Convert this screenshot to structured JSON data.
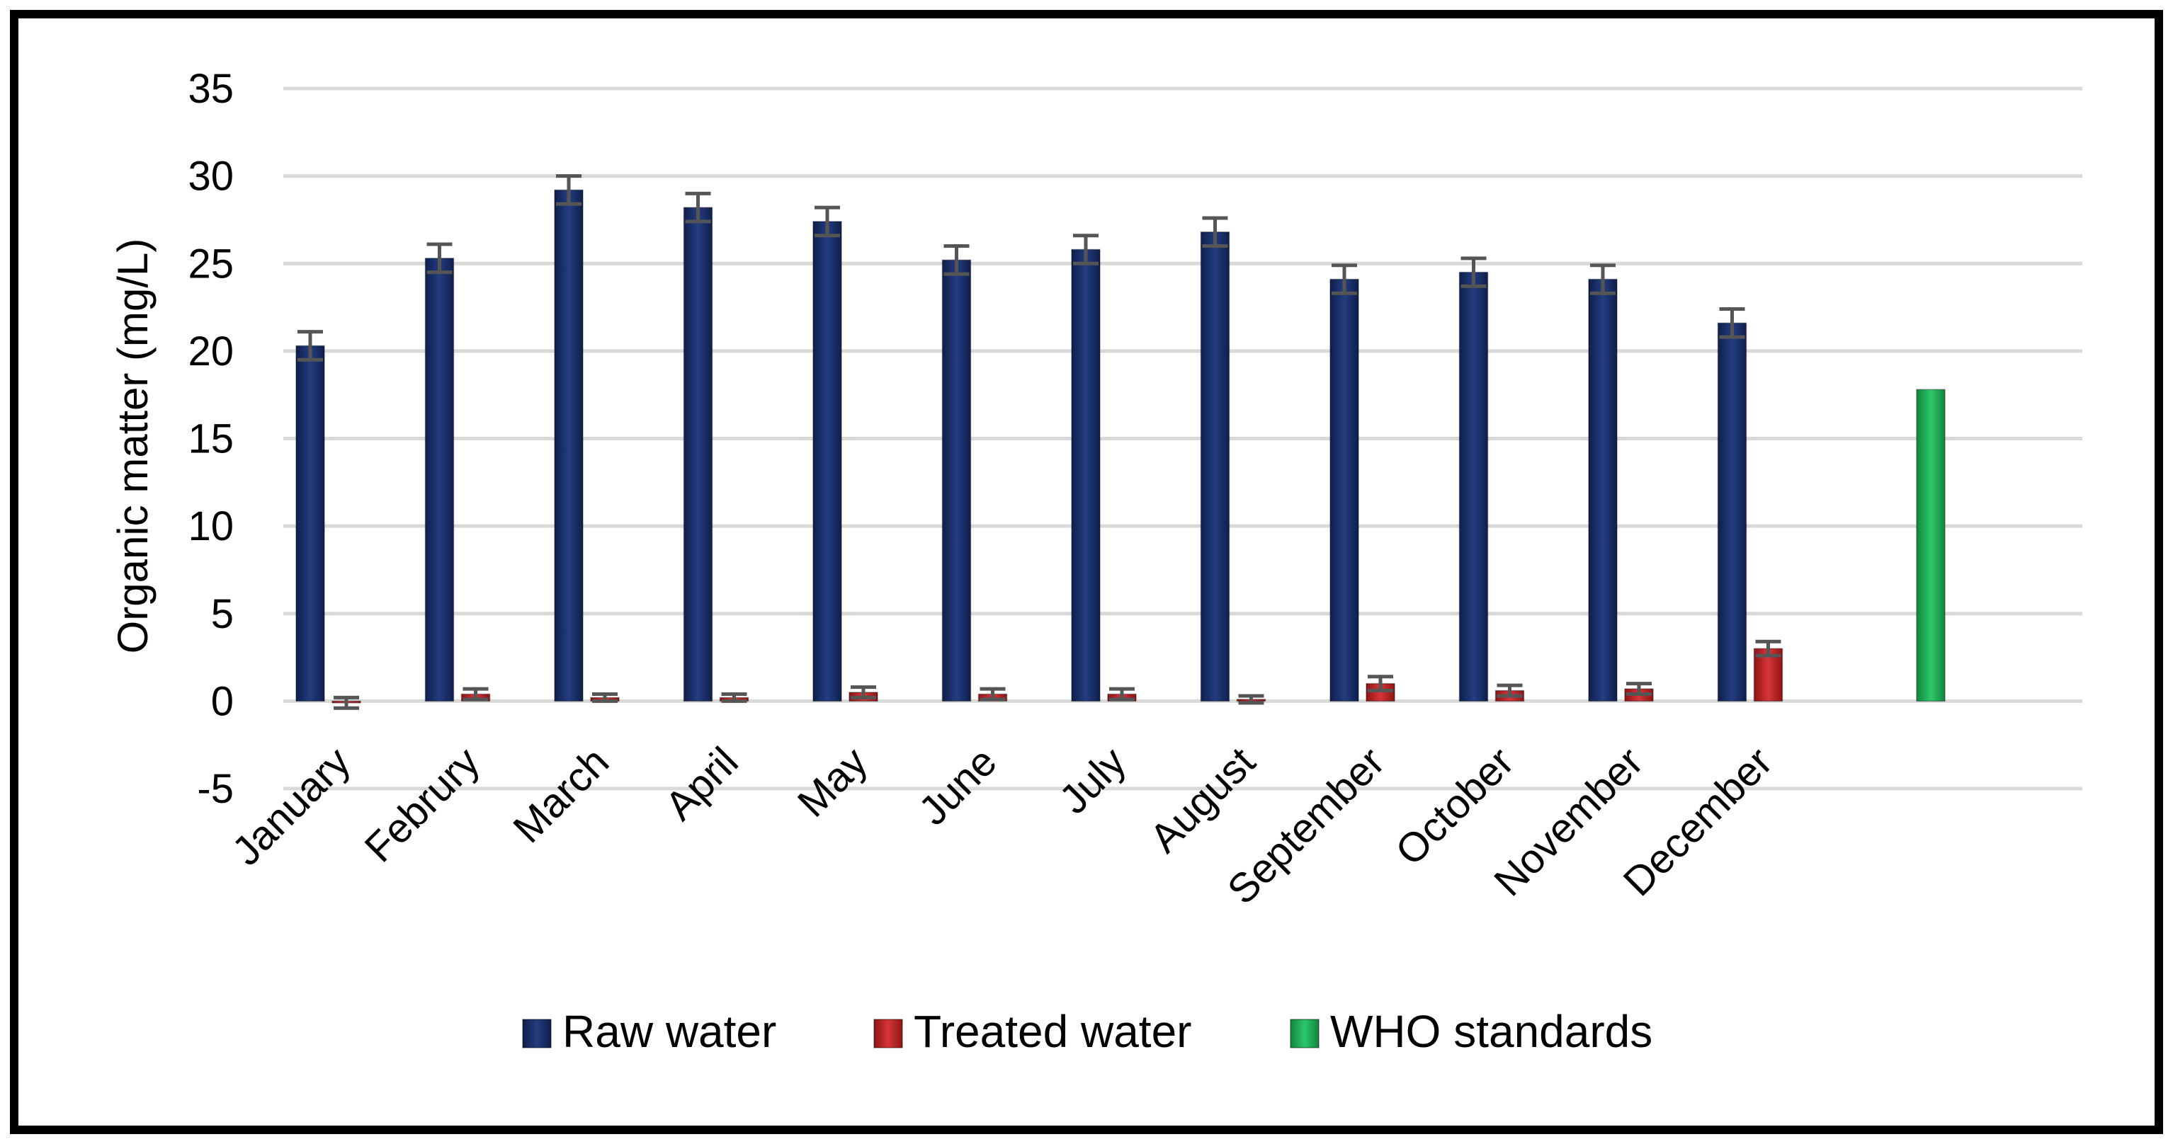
{
  "chart_data": {
    "type": "bar",
    "title": "",
    "xlabel": "",
    "ylabel": "Organic matter (mg/L)",
    "ylim": [
      -5,
      35
    ],
    "yticks": [
      -5,
      0,
      5,
      10,
      15,
      20,
      25,
      30,
      35
    ],
    "categories": [
      "January",
      "Februry",
      "March",
      "April",
      "May",
      "June",
      "July",
      "August",
      "September",
      "October",
      "November",
      "December"
    ],
    "series": [
      {
        "name": "Raw water",
        "color": "#1b2f6b",
        "values": [
          20.3,
          25.3,
          29.2,
          28.2,
          27.4,
          25.2,
          25.8,
          26.8,
          24.1,
          24.5,
          24.1,
          21.6
        ],
        "errors": [
          0.8,
          0.8,
          0.8,
          0.8,
          0.8,
          0.8,
          0.8,
          0.8,
          0.8,
          0.8,
          0.8,
          0.8
        ]
      },
      {
        "name": "Treated water",
        "color": "#c0292b",
        "values": [
          -0.1,
          0.4,
          0.2,
          0.2,
          0.5,
          0.4,
          0.4,
          0.1,
          1.0,
          0.6,
          0.7,
          3.0
        ],
        "errors": [
          0.3,
          0.3,
          0.2,
          0.2,
          0.3,
          0.3,
          0.3,
          0.2,
          0.4,
          0.3,
          0.3,
          0.4
        ]
      },
      {
        "name": "WHO standards",
        "color": "#1fae57",
        "value": 17.8
      }
    ],
    "legend": [
      "Raw water",
      "Treated water",
      "WHO standards"
    ],
    "legend_position": "bottom",
    "grid": true
  }
}
